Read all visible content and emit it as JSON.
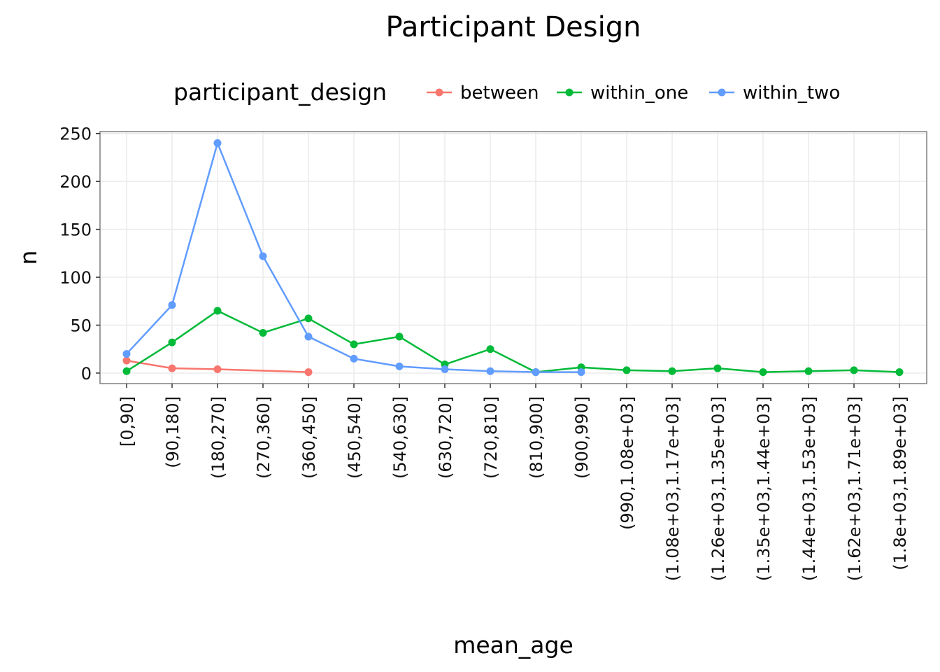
{
  "chart_data": {
    "type": "line",
    "title": "Participant Design",
    "xlabel": "mean_age",
    "ylabel": "n",
    "ylim": [
      -11,
      252
    ],
    "yticks": [
      0,
      50,
      100,
      150,
      200,
      250
    ],
    "grid": true,
    "legend": {
      "title": "participant_design",
      "position": "top"
    },
    "categories": [
      "[0,90]",
      "(90,180]",
      "(180,270]",
      "(270,360]",
      "(360,450]",
      "(450,540]",
      "(540,630]",
      "(630,720]",
      "(720,810]",
      "(810,900]",
      "(900,990]",
      "(990,1.08e+03]",
      "(1.08e+03,1.17e+03]",
      "(1.26e+03,1.35e+03]",
      "(1.35e+03,1.44e+03]",
      "(1.44e+03,1.53e+03]",
      "(1.62e+03,1.71e+03]",
      "(1.8e+03,1.89e+03]"
    ],
    "series": [
      {
        "name": "between",
        "color": "#F8766D",
        "values": [
          13,
          5,
          4,
          null,
          1,
          null,
          null,
          null,
          null,
          null,
          null,
          null,
          null,
          null,
          null,
          null,
          null,
          null
        ]
      },
      {
        "name": "within_one",
        "color": "#00BA38",
        "values": [
          2,
          32,
          65,
          42,
          57,
          30,
          38,
          9,
          25,
          1,
          6,
          3,
          2,
          5,
          1,
          2,
          3,
          1
        ]
      },
      {
        "name": "within_two",
        "color": "#619CFF",
        "values": [
          20,
          71,
          240,
          122,
          38,
          15,
          7,
          4,
          2,
          1,
          1,
          null,
          null,
          null,
          null,
          null,
          null,
          null
        ]
      }
    ]
  }
}
